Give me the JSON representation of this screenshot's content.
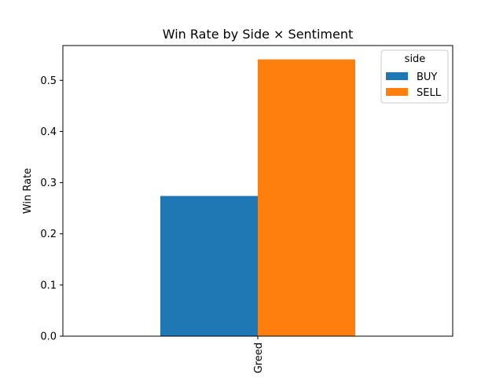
{
  "chart_data": {
    "type": "bar",
    "title": "Win Rate by Side × Sentiment",
    "xlabel": "",
    "ylabel": "Win Rate",
    "categories": [
      "Greed"
    ],
    "series": [
      {
        "name": "BUY",
        "values": [
          0.274
        ],
        "color": "#1f77b4"
      },
      {
        "name": "SELL",
        "values": [
          0.541
        ],
        "color": "#ff7f0e"
      }
    ],
    "ylim": [
      0,
      0.568
    ],
    "yticks": [
      0.0,
      0.1,
      0.2,
      0.3,
      0.4,
      0.5
    ],
    "ytick_labels": [
      "0.0",
      "0.1",
      "0.2",
      "0.3",
      "0.4",
      "0.5"
    ],
    "legend": {
      "title": "side",
      "placement": "top-right"
    },
    "grid": false
  }
}
